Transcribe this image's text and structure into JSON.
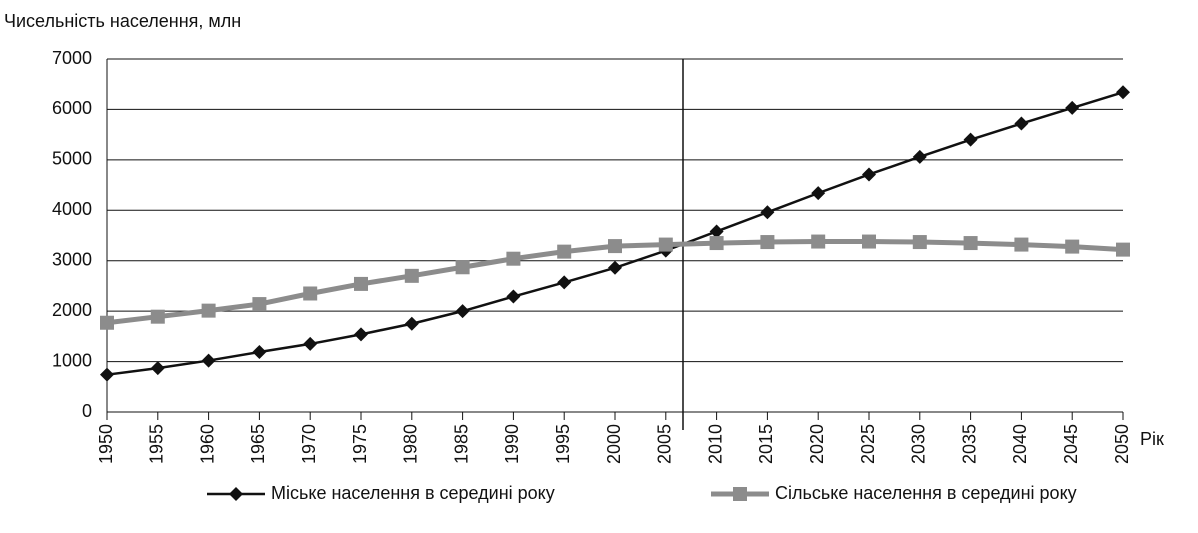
{
  "chart_data": {
    "type": "line",
    "ylabel": "Чисельність населення, млн",
    "xlabel": "Рік",
    "x": [
      1950,
      1955,
      1960,
      1965,
      1970,
      1975,
      1980,
      1985,
      1990,
      1995,
      2000,
      2005,
      2010,
      2015,
      2020,
      2025,
      2030,
      2035,
      2040,
      2045,
      2050
    ],
    "xlim": [
      1950,
      2050
    ],
    "xticks": [
      1950,
      1955,
      1960,
      1965,
      1970,
      1975,
      1980,
      1985,
      1990,
      1995,
      2000,
      2005,
      2010,
      2015,
      2020,
      2025,
      2030,
      2035,
      2040,
      2045,
      2050
    ],
    "ylim": [
      0,
      7000
    ],
    "yticks": [
      0,
      1000,
      2000,
      3000,
      4000,
      5000,
      6000,
      7000
    ],
    "grid": true,
    "legend": "bottom",
    "series": [
      {
        "name": "Міське населення в середині року",
        "color": "#111111",
        "marker": "diamond",
        "values": [
          740,
          870,
          1020,
          1190,
          1350,
          1540,
          1750,
          2000,
          2290,
          2570,
          2860,
          3200,
          3580,
          3960,
          4340,
          4710,
          5060,
          5400,
          5720,
          6030,
          6340
        ]
      },
      {
        "name": "Сільське населення в середині року",
        "color": "#8c8c8c",
        "marker": "square",
        "values": [
          1770,
          1890,
          2010,
          2140,
          2350,
          2540,
          2700,
          2870,
          3040,
          3180,
          3290,
          3320,
          3350,
          3370,
          3380,
          3380,
          3370,
          3350,
          3320,
          3280,
          3220
        ]
      }
    ]
  }
}
